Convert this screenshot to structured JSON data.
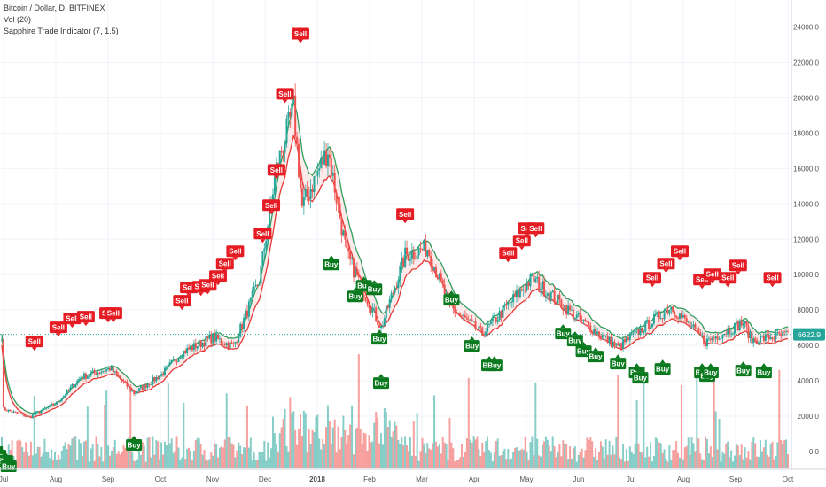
{
  "legend": {
    "symbol": "Bitcoin / Dollar, D, BITFINEX",
    "volume": "Vol (20)",
    "indicator": "Sapphire Trade Indicator (7, 1.5)"
  },
  "colors": {
    "up": "#26a69a",
    "down": "#ef5350",
    "band_upper": "#2e9e5b",
    "band_lower": "#e53935",
    "band_fill_bull": "#e8f5e9",
    "band_fill_bear": "#fde8e8",
    "sell_label": "#e51c23",
    "buy_label": "#0b7a1f",
    "price_line": "#26a69a",
    "price_badge": "#26a69a"
  },
  "chart_data": {
    "type": "candlestick",
    "title": "Bitcoin / Dollar, D, BITFINEX",
    "x_labels": [
      "Jul",
      "Aug",
      "Sep",
      "Oct",
      "Nov",
      "Dec",
      "2018",
      "Feb",
      "Mar",
      "Apr",
      "May",
      "Jun",
      "Jul",
      "Aug",
      "Sep",
      "Oct"
    ],
    "y_ticks": [
      "24000.0",
      "22000.0",
      "20000.0",
      "18000.0",
      "16000.0",
      "14000.0",
      "12000.0",
      "10000.0",
      "8000.0",
      "6000.0",
      "4000.0",
      "2000.0",
      "0.0"
    ],
    "ylim": [
      -1200,
      26200
    ],
    "last_price": "6622.9",
    "close_series": [
      {
        "date": "2017-07-01",
        "value": 2400
      },
      {
        "date": "2017-07-16",
        "value": 1950
      },
      {
        "date": "2017-08-01",
        "value": 2750
      },
      {
        "date": "2017-08-15",
        "value": 4200
      },
      {
        "date": "2017-09-01",
        "value": 4700
      },
      {
        "date": "2017-09-15",
        "value": 3300
      },
      {
        "date": "2017-10-01",
        "value": 4350
      },
      {
        "date": "2017-10-13",
        "value": 5600
      },
      {
        "date": "2017-10-31",
        "value": 6450
      },
      {
        "date": "2017-11-12",
        "value": 5950
      },
      {
        "date": "2017-11-27",
        "value": 9700
      },
      {
        "date": "2017-12-07",
        "value": 16000
      },
      {
        "date": "2017-12-17",
        "value": 19400
      },
      {
        "date": "2017-12-22",
        "value": 13800
      },
      {
        "date": "2018-01-06",
        "value": 17100
      },
      {
        "date": "2018-01-17",
        "value": 11100
      },
      {
        "date": "2018-02-06",
        "value": 7000
      },
      {
        "date": "2018-02-20",
        "value": 11100
      },
      {
        "date": "2018-03-05",
        "value": 11500
      },
      {
        "date": "2018-03-18",
        "value": 8200
      },
      {
        "date": "2018-04-06",
        "value": 6650
      },
      {
        "date": "2018-05-05",
        "value": 9800
      },
      {
        "date": "2018-06-01",
        "value": 7500
      },
      {
        "date": "2018-06-24",
        "value": 5900
      },
      {
        "date": "2018-07-25",
        "value": 8200
      },
      {
        "date": "2018-08-14",
        "value": 6200
      },
      {
        "date": "2018-09-05",
        "value": 7300
      },
      {
        "date": "2018-09-10",
        "value": 6300
      },
      {
        "date": "2018-10-01",
        "value": 6622.9
      }
    ],
    "signals": [
      {
        "type": "Sell",
        "date": "2017-07-19",
        "price": 5900
      },
      {
        "type": "Sell",
        "date": "2017-08-02",
        "price": 6700
      },
      {
        "type": "Sell",
        "date": "2017-08-10",
        "price": 7200
      },
      {
        "type": "Sell",
        "date": "2017-08-18",
        "price": 7300
      },
      {
        "type": "Sell",
        "date": "2017-08-31",
        "price": 7500
      },
      {
        "type": "Sell",
        "date": "2017-09-03",
        "price": 7500
      },
      {
        "type": "Sell",
        "date": "2017-10-13",
        "price": 8200
      },
      {
        "type": "Sell",
        "date": "2017-10-17",
        "price": 8950
      },
      {
        "type": "Sell",
        "date": "2017-10-24",
        "price": 9000
      },
      {
        "type": "Sell",
        "date": "2017-10-28",
        "price": 9100
      },
      {
        "type": "Sell",
        "date": "2017-11-03",
        "price": 9600
      },
      {
        "type": "Sell",
        "date": "2017-11-07",
        "price": 10300
      },
      {
        "type": "Sell",
        "date": "2017-11-13",
        "price": 11000
      },
      {
        "type": "Sell",
        "date": "2017-11-29",
        "price": 12000
      },
      {
        "type": "Sell",
        "date": "2017-12-04",
        "price": 13600
      },
      {
        "type": "Sell",
        "date": "2017-12-07",
        "price": 15600
      },
      {
        "type": "Sell",
        "date": "2017-12-12",
        "price": 19900
      },
      {
        "type": "Sell",
        "date": "2017-12-21",
        "price": 23300
      },
      {
        "type": "Sell",
        "date": "2018-02-20",
        "price": 13100
      },
      {
        "type": "Sell",
        "date": "2018-04-21",
        "price": 10900
      },
      {
        "type": "Sell",
        "date": "2018-04-29",
        "price": 11600
      },
      {
        "type": "Sell",
        "date": "2018-05-02",
        "price": 12300
      },
      {
        "type": "Sell",
        "date": "2018-05-07",
        "price": 12300
      },
      {
        "type": "Sell",
        "date": "2018-07-14",
        "price": 9500
      },
      {
        "type": "Sell",
        "date": "2018-07-22",
        "price": 10300
      },
      {
        "type": "Sell",
        "date": "2018-07-30",
        "price": 11000
      },
      {
        "type": "Sell",
        "date": "2018-08-12",
        "price": 9400
      },
      {
        "type": "Sell",
        "date": "2018-08-18",
        "price": 9700
      },
      {
        "type": "Sell",
        "date": "2018-08-27",
        "price": 9500
      },
      {
        "type": "Sell",
        "date": "2018-09-02",
        "price": 10200
      },
      {
        "type": "Sell",
        "date": "2018-09-22",
        "price": 9500
      },
      {
        "type": "Buy",
        "date": "2017-06-26",
        "price": 300
      },
      {
        "type": "Buy",
        "date": "2017-06-28",
        "price": 100
      },
      {
        "type": "Buy",
        "date": "2017-07-02",
        "price": -200
      },
      {
        "type": "Buy",
        "date": "2017-07-04",
        "price": -500
      },
      {
        "type": "Buy",
        "date": "2017-09-15",
        "price": 700
      },
      {
        "type": "Buy",
        "date": "2018-01-08",
        "price": 10900
      },
      {
        "type": "Buy",
        "date": "2018-01-22",
        "price": 9100
      },
      {
        "type": "Buy",
        "date": "2018-01-27",
        "price": 9700
      },
      {
        "type": "Buy",
        "date": "2018-02-02",
        "price": 9500
      },
      {
        "type": "Buy",
        "date": "2018-02-05",
        "price": 6700
      },
      {
        "type": "Buy",
        "date": "2018-02-06",
        "price": 4200
      },
      {
        "type": "Buy",
        "date": "2018-03-19",
        "price": 8900
      },
      {
        "type": "Buy",
        "date": "2018-03-31",
        "price": 6300
      },
      {
        "type": "Buy",
        "date": "2018-04-10",
        "price": 5200
      },
      {
        "type": "Buy",
        "date": "2018-04-13",
        "price": 5200
      },
      {
        "type": "Buy",
        "date": "2018-05-23",
        "price": 7000
      },
      {
        "type": "Buy",
        "date": "2018-05-30",
        "price": 6600
      },
      {
        "type": "Buy",
        "date": "2018-06-04",
        "price": 6000
      },
      {
        "type": "Buy",
        "date": "2018-06-11",
        "price": 5700
      },
      {
        "type": "Buy",
        "date": "2018-06-24",
        "price": 5300
      },
      {
        "type": "Buy",
        "date": "2018-07-05",
        "price": 4800
      },
      {
        "type": "Buy",
        "date": "2018-07-07",
        "price": 4500
      },
      {
        "type": "Buy",
        "date": "2018-07-20",
        "price": 5000
      },
      {
        "type": "Buy",
        "date": "2018-08-12",
        "price": 4800
      },
      {
        "type": "Buy",
        "date": "2018-08-15",
        "price": 4600
      },
      {
        "type": "Buy",
        "date": "2018-08-17",
        "price": 4800
      },
      {
        "type": "Buy",
        "date": "2018-09-05",
        "price": 4900
      },
      {
        "type": "Buy",
        "date": "2018-09-17",
        "price": 4800
      }
    ]
  }
}
